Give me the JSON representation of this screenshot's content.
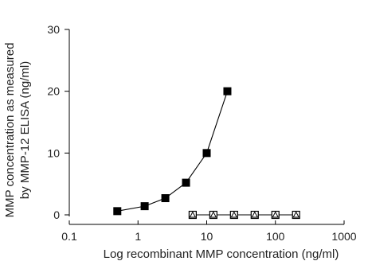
{
  "chart_data": {
    "type": "line",
    "x_scale": "log",
    "xlim": [
      0.1,
      1000
    ],
    "ylim": [
      0,
      30
    ],
    "x_ticks": [
      "0.1",
      "1",
      "10",
      "100",
      "1000"
    ],
    "y_ticks": [
      "0",
      "10",
      "20",
      "30"
    ],
    "xlabel": "Log recombinant MMP concentration (ng/ml)",
    "ylabel_lines": [
      "MMP concentration as measured",
      "by MMP-12 ELISA (ng/ml)"
    ],
    "grid": false,
    "series": [
      {
        "marker": "filled-square",
        "x": [
          0.5,
          1.25,
          2.5,
          5,
          10,
          20
        ],
        "y": [
          0.6,
          1.4,
          2.7,
          5.2,
          10.0,
          20.0
        ]
      },
      {
        "marker": "open-square-with-triangle",
        "x": [
          6.25,
          12.5,
          25,
          50,
          100,
          200
        ],
        "y": [
          0,
          0,
          0,
          0,
          0,
          0
        ]
      }
    ]
  }
}
